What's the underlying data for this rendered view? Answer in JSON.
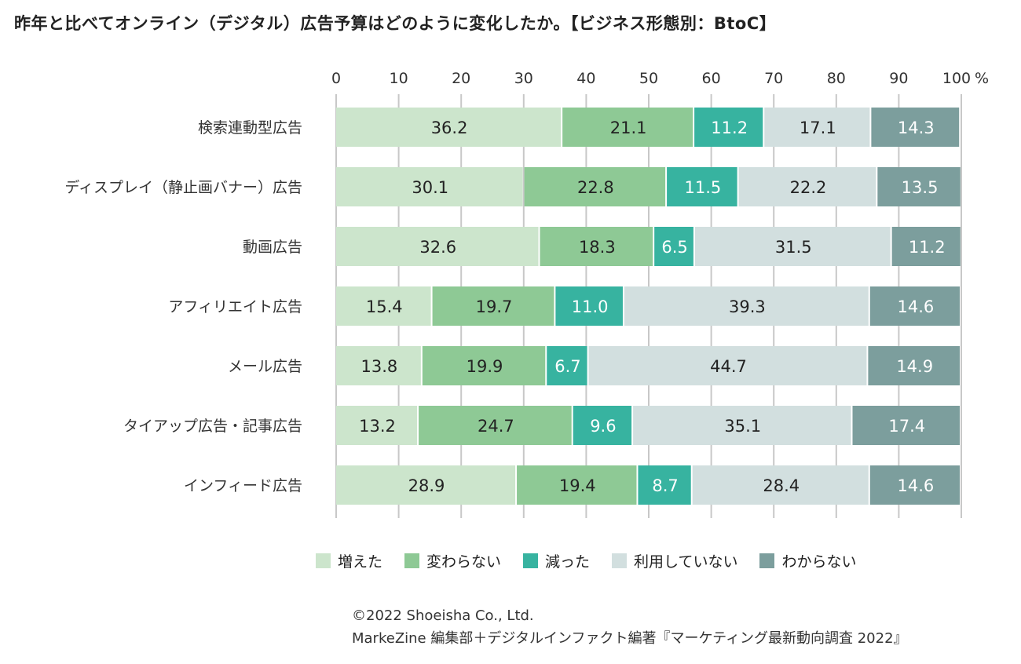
{
  "title": "昨年と比べてオンライン（デジタル）広告予算はどのように変化したか。【ビジネス形態別：BtoC】",
  "chart_data": {
    "type": "bar",
    "orientation": "horizontal",
    "stacked": true,
    "categories": [
      "検索連動型広告",
      "ディスプレイ（静止画バナー）広告",
      "動画広告",
      "アフィリエイト広告",
      "メール広告",
      "タイアップ広告・記事広告",
      "インフィード広告"
    ],
    "series": [
      {
        "name": "増えた",
        "color": "#cce5cc",
        "values": [
          36.2,
          30.1,
          32.6,
          15.4,
          13.8,
          13.2,
          28.9
        ]
      },
      {
        "name": "変わらない",
        "color": "#8ec995",
        "values": [
          21.1,
          22.8,
          18.3,
          19.7,
          19.9,
          24.7,
          19.4
        ]
      },
      {
        "name": "減った",
        "color": "#37b3a0",
        "values": [
          11.2,
          11.5,
          6.5,
          11.0,
          6.7,
          9.6,
          8.7
        ]
      },
      {
        "name": "利用していない",
        "color": "#d2dfdf",
        "values": [
          17.1,
          22.2,
          31.5,
          39.3,
          44.7,
          35.1,
          28.4
        ]
      },
      {
        "name": "わからない",
        "color": "#7c9e9d",
        "values": [
          14.3,
          13.5,
          11.2,
          14.6,
          14.9,
          17.4,
          14.6
        ]
      }
    ],
    "xlim": [
      0,
      100
    ],
    "xticks": [
      "0",
      "10",
      "20",
      "30",
      "40",
      "50",
      "60",
      "70",
      "80",
      "90",
      "100"
    ],
    "x_unit": "%",
    "grid": true,
    "legend_position": "bottom"
  },
  "footer": {
    "copyright": "©2022 Shoeisha Co., Ltd.",
    "source": "MarkeZine 編集部＋デジタルインファクト編著『マーケティング最新動向調査 2022』"
  }
}
